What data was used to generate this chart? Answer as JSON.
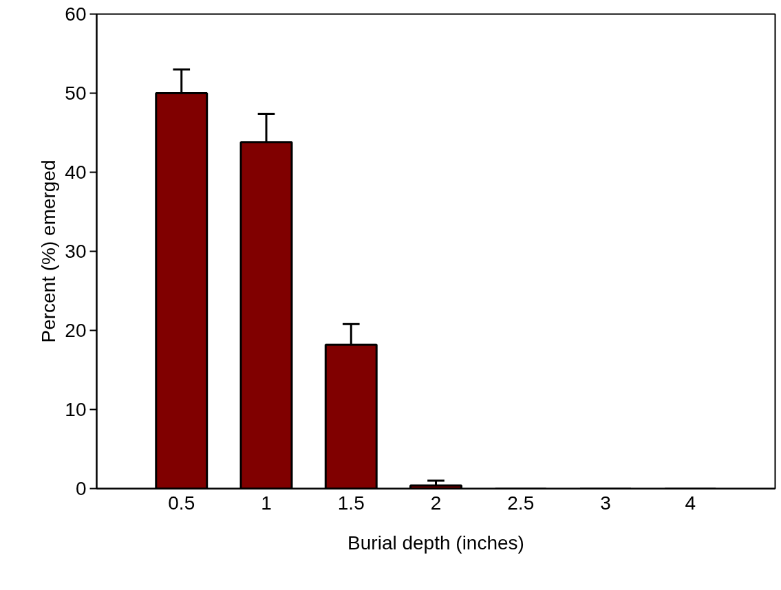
{
  "chart_data": {
    "type": "bar",
    "xlabel": "Burial depth (inches)",
    "ylabel": "Percent (%) emerged",
    "categories": [
      "0.5",
      "1",
      "1.5",
      "2",
      "2.5",
      "3",
      "4"
    ],
    "values": [
      50,
      43.8,
      18.2,
      0.4,
      0,
      0,
      0
    ],
    "errors": [
      [
        50,
        53
      ],
      [
        43.8,
        47.4
      ],
      [
        18.2,
        20.8
      ],
      [
        0.4,
        1.0
      ],
      null,
      null,
      null
    ],
    "color": "#800000",
    "ylim": [
      0,
      60
    ],
    "yticks": [
      0,
      10,
      20,
      30,
      40,
      50,
      60
    ],
    "grid": false
  }
}
